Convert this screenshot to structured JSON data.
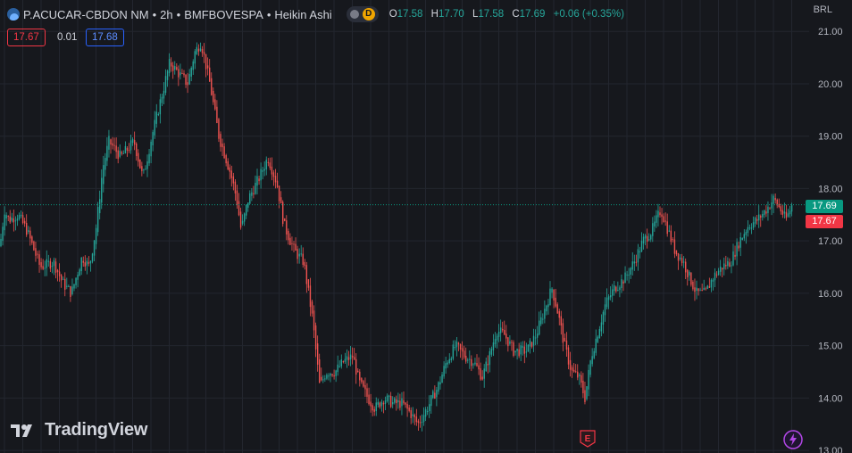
{
  "header": {
    "symbol": "P.ACUCAR-CBDON NM",
    "interval": "2h",
    "exchange": "BMFBOVESPA",
    "chart_style": "Heikin Ashi",
    "separator": "•",
    "badge_letter": "D",
    "ohlc": {
      "o_label": "O",
      "o_value": "17.58",
      "h_label": "H",
      "h_value": "17.70",
      "l_label": "L",
      "l_value": "17.58",
      "c_label": "C",
      "c_value": "17.69",
      "change": "+0.06 (+0.35%)"
    }
  },
  "trade": {
    "sell": "17.67",
    "spread": "0.01",
    "buy": "17.68"
  },
  "currency": "BRL",
  "price_tags": {
    "last": "17.69",
    "bid": "17.67"
  },
  "logo_text": "TradingView",
  "event_icon_letter": "E",
  "colors": {
    "up": "#26a69a",
    "down": "#ef5350",
    "background": "#16181d",
    "grid": "#23262f",
    "last_price": "#089981",
    "bid": "#f23645"
  },
  "chart_data": {
    "type": "line",
    "style": "candlestick (Heikin Ashi)",
    "y_axis": {
      "ticks": [
        "13.00",
        "14.00",
        "15.00",
        "16.00",
        "17.00",
        "18.00",
        "19.00",
        "20.00",
        "21.00"
      ],
      "range": [
        12.95,
        21.6
      ]
    },
    "grid": true,
    "last_price": 17.69,
    "bid_price": 17.67,
    "path": [
      [
        0,
        16.9
      ],
      [
        5,
        17.6
      ],
      [
        10,
        17.4
      ],
      [
        20,
        17.5
      ],
      [
        30,
        17.2
      ],
      [
        45,
        16.5
      ],
      [
        60,
        16.6
      ],
      [
        70,
        16.2
      ],
      [
        80,
        16.0
      ],
      [
        92,
        16.7
      ],
      [
        100,
        16.5
      ],
      [
        108,
        17.3
      ],
      [
        115,
        18.4
      ],
      [
        122,
        18.9
      ],
      [
        135,
        18.6
      ],
      [
        150,
        18.9
      ],
      [
        160,
        18.2
      ],
      [
        170,
        19.0
      ],
      [
        180,
        19.7
      ],
      [
        190,
        20.4
      ],
      [
        200,
        20.2
      ],
      [
        210,
        20.0
      ],
      [
        218,
        20.6
      ],
      [
        225,
        20.8
      ],
      [
        235,
        20.0
      ],
      [
        245,
        19.0
      ],
      [
        258,
        18.3
      ],
      [
        265,
        17.8
      ],
      [
        270,
        17.2
      ],
      [
        278,
        17.8
      ],
      [
        290,
        18.2
      ],
      [
        300,
        18.6
      ],
      [
        310,
        18.1
      ],
      [
        318,
        17.3
      ],
      [
        330,
        16.8
      ],
      [
        340,
        16.6
      ],
      [
        350,
        15.5
      ],
      [
        358,
        14.2
      ],
      [
        365,
        14.5
      ],
      [
        375,
        14.5
      ],
      [
        385,
        14.7
      ],
      [
        395,
        14.8
      ],
      [
        402,
        14.3
      ],
      [
        412,
        14.0
      ],
      [
        420,
        13.8
      ],
      [
        430,
        14.0
      ],
      [
        440,
        13.9
      ],
      [
        450,
        13.9
      ],
      [
        460,
        13.7
      ],
      [
        468,
        13.5
      ],
      [
        478,
        13.8
      ],
      [
        490,
        14.2
      ],
      [
        500,
        14.7
      ],
      [
        510,
        15.0
      ],
      [
        520,
        14.8
      ],
      [
        530,
        14.7
      ],
      [
        540,
        14.4
      ],
      [
        548,
        14.8
      ],
      [
        556,
        15.3
      ],
      [
        565,
        15.2
      ],
      [
        575,
        14.9
      ],
      [
        590,
        14.9
      ],
      [
        600,
        15.2
      ],
      [
        610,
        15.7
      ],
      [
        618,
        16.1
      ],
      [
        625,
        15.6
      ],
      [
        632,
        15.0
      ],
      [
        640,
        14.5
      ],
      [
        648,
        14.4
      ],
      [
        655,
        14.0
      ],
      [
        662,
        14.8
      ],
      [
        670,
        15.3
      ],
      [
        678,
        15.8
      ],
      [
        688,
        16.1
      ],
      [
        700,
        16.3
      ],
      [
        710,
        16.6
      ],
      [
        720,
        17.0
      ],
      [
        730,
        17.2
      ],
      [
        740,
        17.6
      ],
      [
        748,
        17.2
      ],
      [
        756,
        16.8
      ],
      [
        765,
        16.6
      ],
      [
        772,
        16.3
      ],
      [
        780,
        16.0
      ],
      [
        790,
        16.0
      ],
      [
        798,
        16.3
      ],
      [
        808,
        16.5
      ],
      [
        818,
        16.6
      ],
      [
        828,
        17.0
      ],
      [
        838,
        17.3
      ],
      [
        848,
        17.4
      ],
      [
        858,
        17.6
      ],
      [
        866,
        17.8
      ],
      [
        874,
        17.6
      ],
      [
        880,
        17.4
      ],
      [
        887,
        17.69
      ]
    ]
  }
}
